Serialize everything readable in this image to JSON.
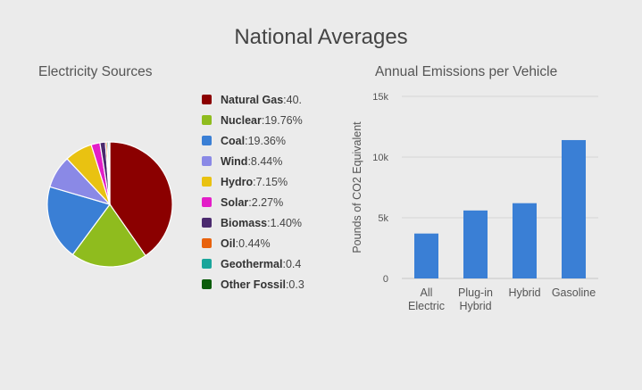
{
  "page_title": "National Averages",
  "chart_data": [
    {
      "type": "pie",
      "title": "Electricity Sources",
      "slices": [
        {
          "label": "Natural Gas",
          "value": 40.21,
          "display": "40.",
          "color": "#8b0000"
        },
        {
          "label": "Nuclear",
          "value": 19.76,
          "display": "19.76%",
          "color": "#8fbc1e"
        },
        {
          "label": "Coal",
          "value": 19.36,
          "display": "19.36%",
          "color": "#3a7fd5"
        },
        {
          "label": "Wind",
          "value": 8.44,
          "display": "8.44%",
          "color": "#8a89e6"
        },
        {
          "label": "Hydro",
          "value": 7.15,
          "display": "7.15%",
          "color": "#e9c211"
        },
        {
          "label": "Solar",
          "value": 2.27,
          "display": "2.27%",
          "color": "#e31ec8"
        },
        {
          "label": "Biomass",
          "value": 1.4,
          "display": "1.40%",
          "color": "#4b2a6e"
        },
        {
          "label": "Oil",
          "value": 0.44,
          "display": "0.44%",
          "color": "#e8620d"
        },
        {
          "label": "Geothermal",
          "value": 0.4,
          "display": "0.4",
          "color": "#1aa59b"
        },
        {
          "label": "Other Fossil",
          "value": 0.3,
          "display": "0.3",
          "color": "#0b5c0b"
        }
      ]
    },
    {
      "type": "bar",
      "title": "Annual Emissions per Vehicle",
      "ylabel": "Pounds of CO2 Equivalent",
      "ylim": [
        0,
        15000
      ],
      "yticks": [
        {
          "value": 0,
          "label": "0"
        },
        {
          "value": 5000,
          "label": "5k"
        },
        {
          "value": 10000,
          "label": "10k"
        },
        {
          "value": 15000,
          "label": "15k"
        }
      ],
      "categories": [
        [
          "All",
          "Electric"
        ],
        [
          "Plug-in",
          "Hybrid"
        ],
        [
          "Hybrid"
        ],
        [
          "Gasoline"
        ]
      ],
      "values": [
        3700,
        5600,
        6200,
        11400
      ],
      "bar_color": "#3a7fd5"
    }
  ]
}
